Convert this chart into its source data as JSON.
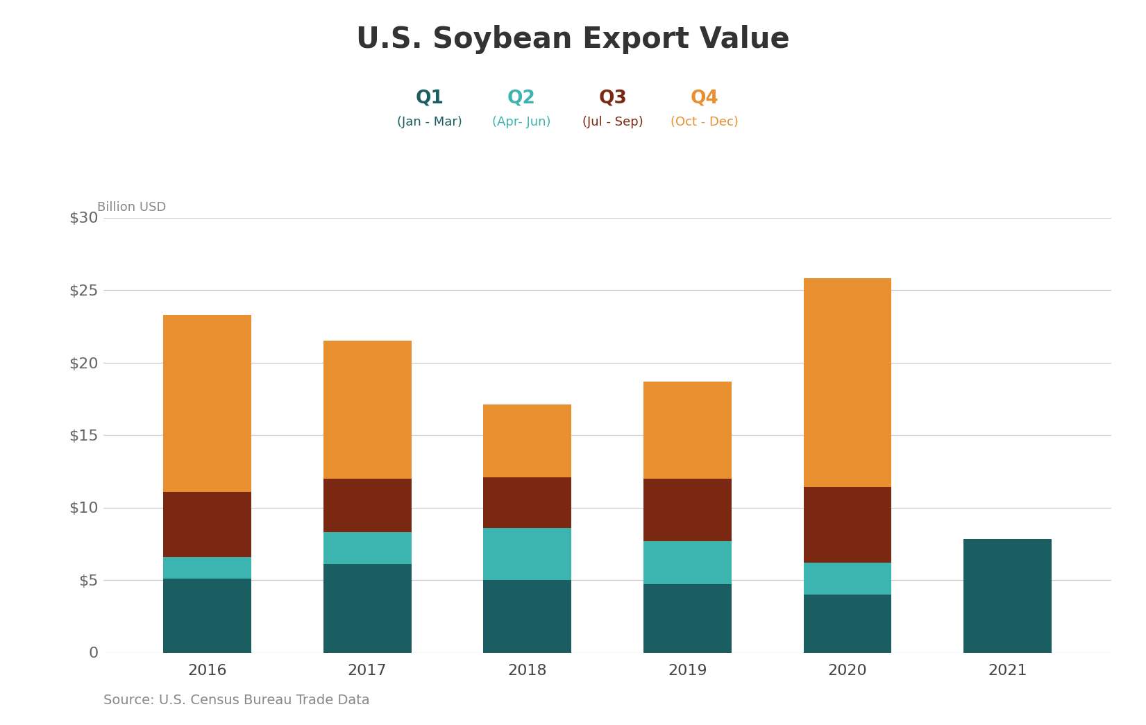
{
  "title": "U.S. Soybean Export Value",
  "ylabel": "Billion USD",
  "source": "Source: U.S. Census Bureau Trade Data",
  "years": [
    "2016",
    "2017",
    "2018",
    "2019",
    "2020",
    "2021"
  ],
  "q1": [
    5.1,
    6.1,
    5.0,
    4.7,
    4.0,
    7.8
  ],
  "q2": [
    1.5,
    2.2,
    3.6,
    3.0,
    2.2,
    0.0
  ],
  "q3": [
    4.5,
    3.7,
    3.5,
    4.3,
    5.2,
    0.0
  ],
  "q4": [
    12.2,
    9.5,
    5.0,
    6.7,
    14.4,
    0.0
  ],
  "colors": {
    "Q1": "#1b5e62",
    "Q2": "#3cb5b0",
    "Q3": "#7b2812",
    "Q4": "#e89030"
  },
  "ylim": [
    0,
    30
  ],
  "yticks": [
    0,
    5,
    10,
    15,
    20,
    25,
    30
  ],
  "ytick_labels": [
    "0",
    "$5",
    "$10",
    "$15",
    "$20",
    "$25",
    "$30"
  ],
  "background_color": "#ffffff",
  "bar_width": 0.55,
  "legend_items": [
    {
      "label": "Q1",
      "sublabel": "(Jan - Mar)",
      "color": "#1b5e62"
    },
    {
      "label": "Q2",
      "sublabel": "(Apr- Jun)",
      "color": "#3cb5b0"
    },
    {
      "label": "Q3",
      "sublabel": "(Jul - Sep)",
      "color": "#7b2812"
    },
    {
      "label": "Q4",
      "sublabel": "(Oct - Dec)",
      "color": "#e89030"
    }
  ],
  "title_fontsize": 30,
  "tick_fontsize": 16,
  "ylabel_fontsize": 13,
  "source_fontsize": 14,
  "legend_label_fontsize": 19,
  "legend_sublabel_fontsize": 13
}
